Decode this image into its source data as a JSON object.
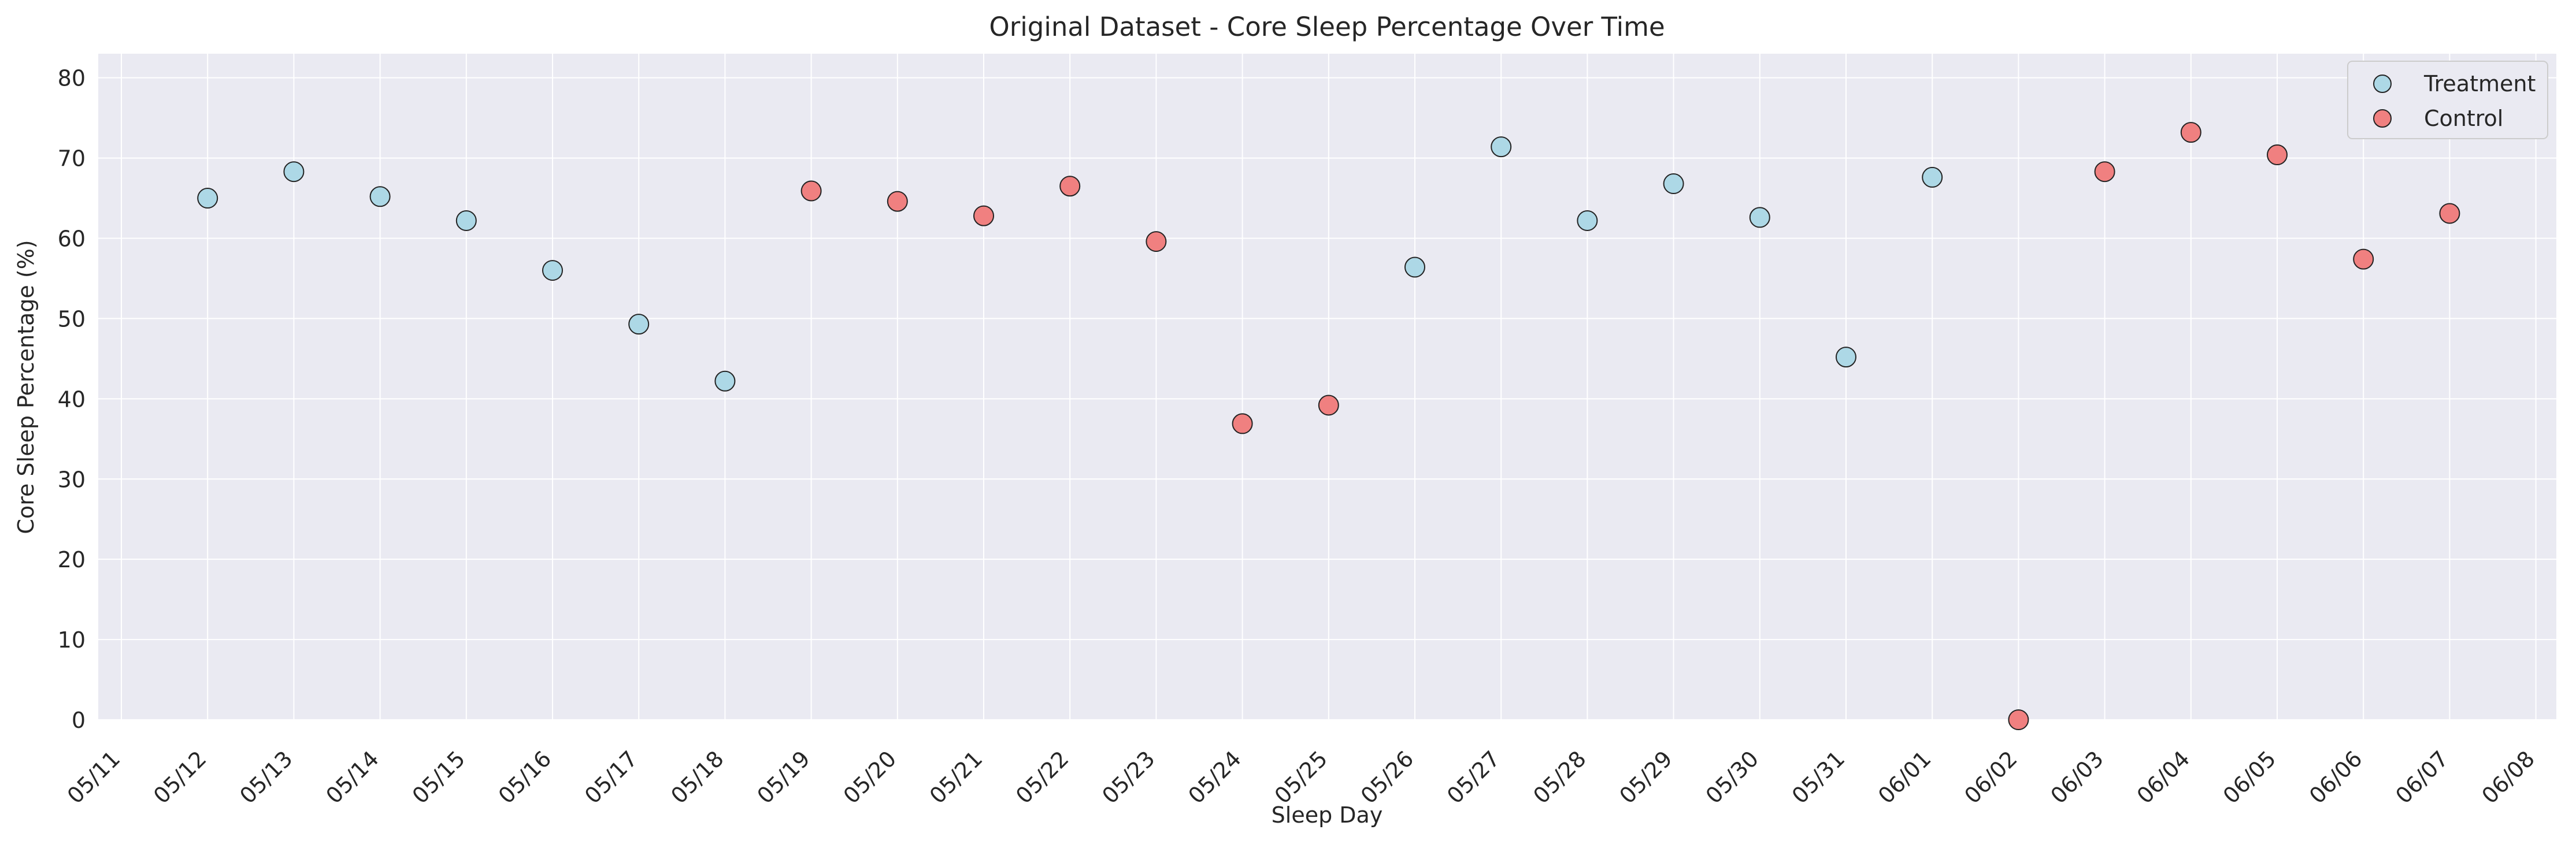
{
  "chart_data": {
    "type": "scatter",
    "title": "Original Dataset - Core Sleep Percentage Over Time",
    "xlabel": "Sleep Day",
    "ylabel": "Core Sleep Percentage (%)",
    "ylim": [
      0,
      83
    ],
    "yticks": [
      0,
      10,
      20,
      30,
      40,
      50,
      60,
      70,
      80
    ],
    "xlim": [
      "05/11",
      "06/08"
    ],
    "xticks": [
      "05/11",
      "05/12",
      "05/13",
      "05/14",
      "05/15",
      "05/16",
      "05/17",
      "05/18",
      "05/19",
      "05/20",
      "05/21",
      "05/22",
      "05/23",
      "05/24",
      "05/25",
      "05/26",
      "05/27",
      "05/28",
      "05/29",
      "05/30",
      "05/31",
      "06/01",
      "06/02",
      "06/03",
      "06/04",
      "06/05",
      "06/06",
      "06/07",
      "06/08"
    ],
    "grid": true,
    "legend_position": "top-right",
    "series": [
      {
        "name": "Treatment",
        "color": "#add8e6",
        "points": [
          {
            "x": "05/12",
            "y": 65.0
          },
          {
            "x": "05/13",
            "y": 68.3
          },
          {
            "x": "05/14",
            "y": 65.2
          },
          {
            "x": "05/15",
            "y": 62.2
          },
          {
            "x": "05/16",
            "y": 56.0
          },
          {
            "x": "05/17",
            "y": 49.3
          },
          {
            "x": "05/18",
            "y": 42.2
          },
          {
            "x": "05/26",
            "y": 56.4
          },
          {
            "x": "05/27",
            "y": 71.4
          },
          {
            "x": "05/28",
            "y": 62.2
          },
          {
            "x": "05/29",
            "y": 66.8
          },
          {
            "x": "05/30",
            "y": 62.6
          },
          {
            "x": "05/31",
            "y": 45.2
          },
          {
            "x": "06/01",
            "y": 67.6
          }
        ]
      },
      {
        "name": "Control",
        "color": "#f08080",
        "points": [
          {
            "x": "05/19",
            "y": 65.9
          },
          {
            "x": "05/20",
            "y": 64.6
          },
          {
            "x": "05/21",
            "y": 62.8
          },
          {
            "x": "05/22",
            "y": 66.5
          },
          {
            "x": "05/23",
            "y": 59.6
          },
          {
            "x": "05/24",
            "y": 36.9
          },
          {
            "x": "05/25",
            "y": 39.2
          },
          {
            "x": "06/02",
            "y": 0.0
          },
          {
            "x": "06/03",
            "y": 68.3
          },
          {
            "x": "06/04",
            "y": 73.2
          },
          {
            "x": "06/05",
            "y": 70.4
          },
          {
            "x": "06/06",
            "y": 57.4
          },
          {
            "x": "06/07",
            "y": 63.1
          }
        ]
      }
    ]
  }
}
